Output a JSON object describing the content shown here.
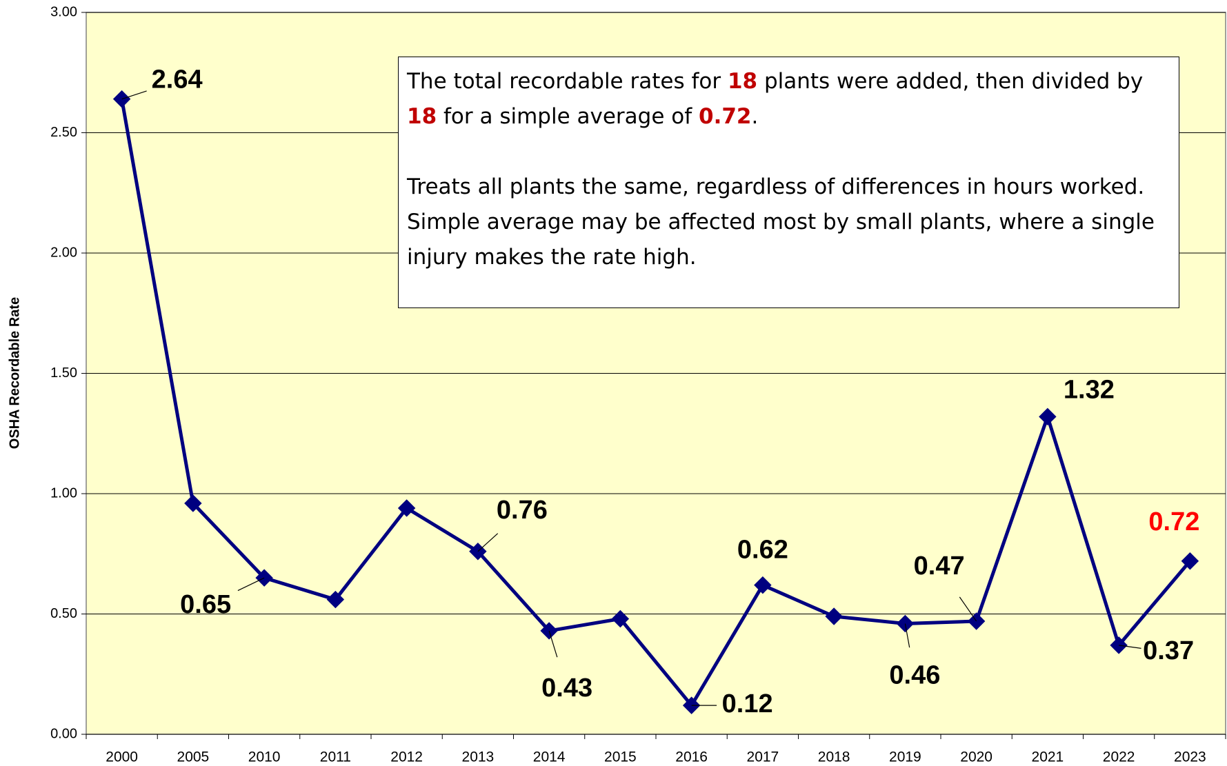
{
  "chart_data": {
    "type": "line",
    "y_label": "OSHA Recordable Rate",
    "categories": [
      "2000",
      "2005",
      "2010",
      "2011",
      "2012",
      "2013",
      "2014",
      "2015",
      "2016",
      "2017",
      "2018",
      "2019",
      "2020",
      "2021",
      "2022",
      "2023"
    ],
    "series": [
      {
        "name": "OSHA Recordable Rate",
        "color": "#000080",
        "values": [
          2.64,
          0.96,
          0.65,
          0.56,
          0.94,
          0.76,
          0.43,
          0.48,
          0.12,
          0.62,
          0.49,
          0.46,
          0.47,
          1.32,
          0.37,
          0.72
        ],
        "value_labels": [
          "2.64",
          null,
          "0.65",
          null,
          null,
          "0.76",
          "0.43",
          null,
          "0.12",
          "0.62",
          null,
          "0.46",
          "0.47",
          "1.32",
          "0.37",
          "0.72"
        ],
        "value_label_colors": [
          "#000000",
          null,
          "#000000",
          null,
          null,
          "#000000",
          "#000000",
          null,
          "#000000",
          "#000000",
          null,
          "#000000",
          "#000000",
          "#000000",
          "#000000",
          "#ff0000"
        ]
      }
    ],
    "ylim": [
      0,
      3
    ],
    "yticks": [
      {
        "value": 0,
        "label": "0.00"
      },
      {
        "value": 0.5,
        "label": "0.50"
      },
      {
        "value": 1,
        "label": "1.00"
      },
      {
        "value": 1.5,
        "label": "1.50"
      },
      {
        "value": 2,
        "label": "2.00"
      },
      {
        "value": 2.5,
        "label": "2.50"
      },
      {
        "value": 3,
        "label": "3.00"
      }
    ],
    "grid": true,
    "plot_background": "#ffffcc",
    "annotation": [
      [
        "The total recordable rates for ",
        "18",
        " plants were added, then divided by ",
        "18",
        " for a simple average of ",
        "0.72",
        "."
      ],
      [
        "Treats all plants the same, regardless of differences in hours worked. Simple average may be affected most by small plants, where a single injury makes the rate high."
      ]
    ]
  }
}
